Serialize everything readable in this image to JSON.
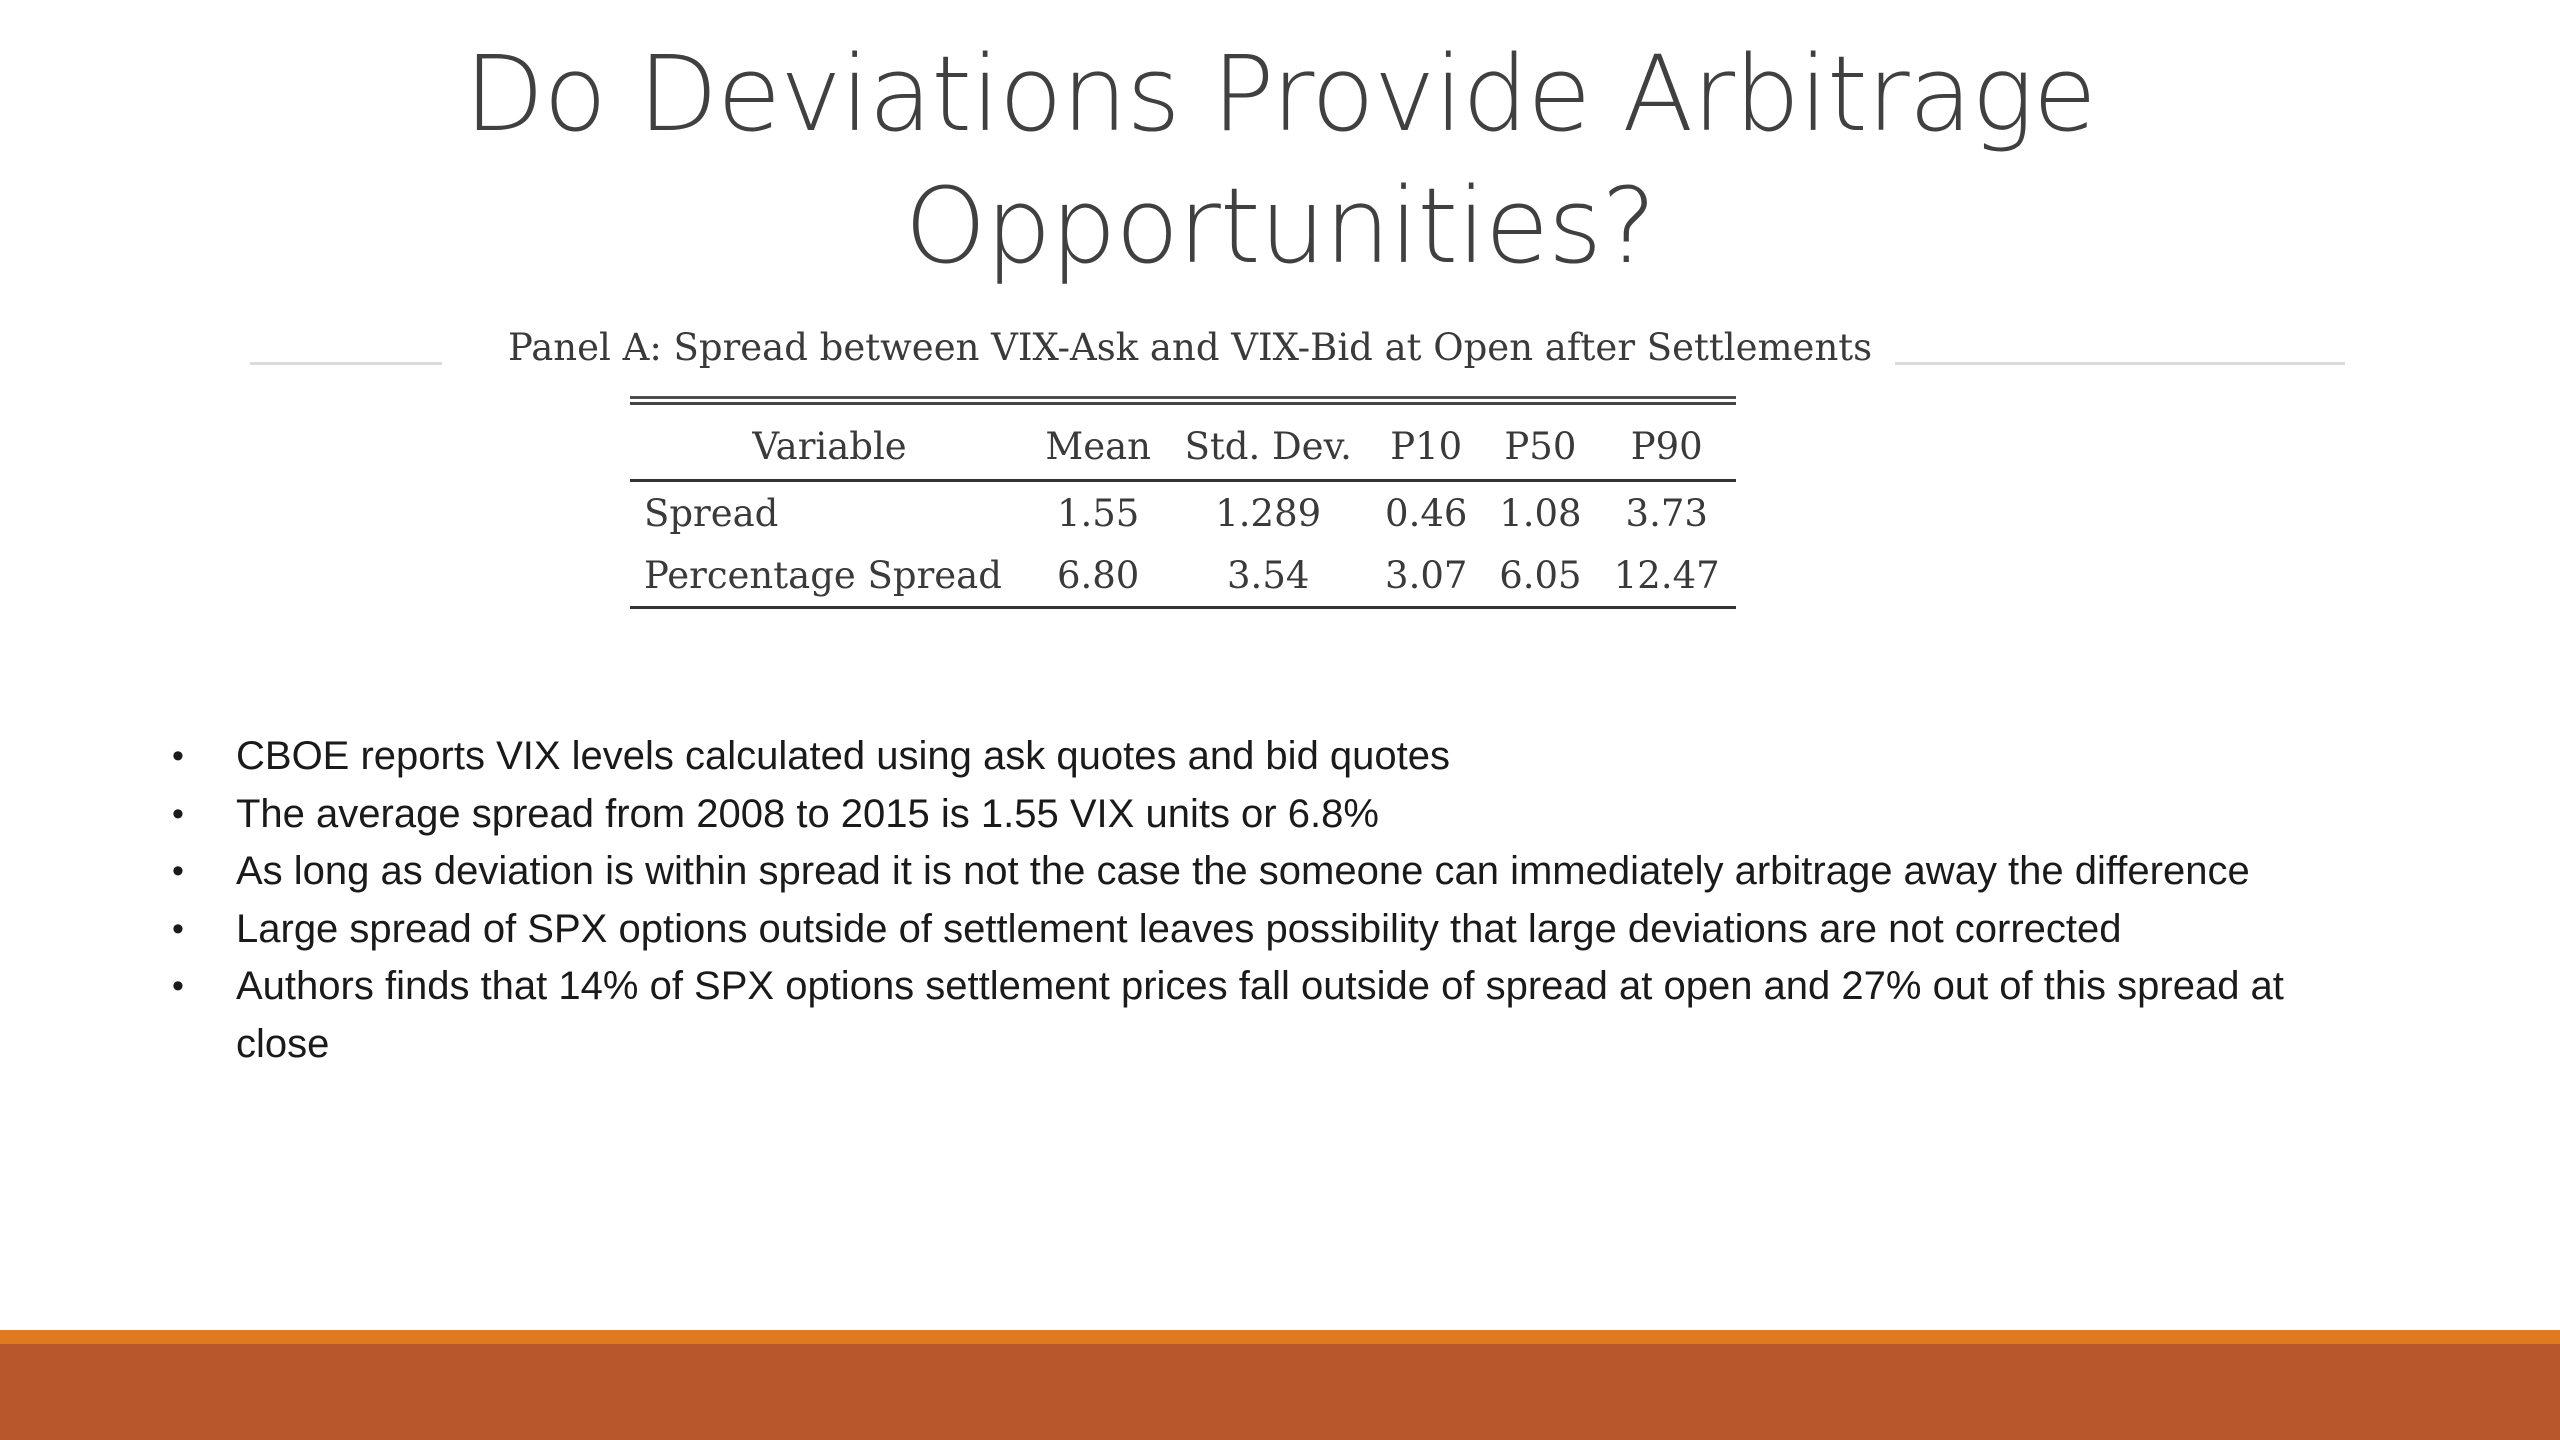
{
  "title": {
    "line1": "Do Deviations Provide Arbitrage",
    "line2": "Opportunities?"
  },
  "panel": {
    "caption": "Panel A: Spread between VIX-Ask and VIX-Bid at Open after Settlements",
    "columns": [
      "Variable",
      "Mean",
      "Std. Dev.",
      "P10",
      "P50",
      "P90"
    ],
    "rows": [
      [
        "Spread",
        "1.55",
        "1.289",
        "0.46",
        "1.08",
        "3.73"
      ],
      [
        "Percentage Spread",
        "6.80",
        "3.54",
        "3.07",
        "6.05",
        "12.47"
      ]
    ]
  },
  "bullets": {
    "marker": "•",
    "items": [
      "CBOE reports VIX levels calculated using ask quotes and bid quotes",
      "The average spread from 2008 to 2015 is 1.55 VIX units or 6.8%",
      "As long as deviation is within spread it is not the case the someone can immediately arbitrage away the difference",
      "Large spread of SPX options outside of settlement leaves possibility that large deviations are not corrected",
      "Authors finds that 14% of SPX options settlement prices  fall outside of spread at open and 27% out of this spread at close"
    ]
  },
  "colors": {
    "footer_stripe": "#e07a22",
    "footer_band": "#b9572c",
    "title_text": "#404040"
  }
}
